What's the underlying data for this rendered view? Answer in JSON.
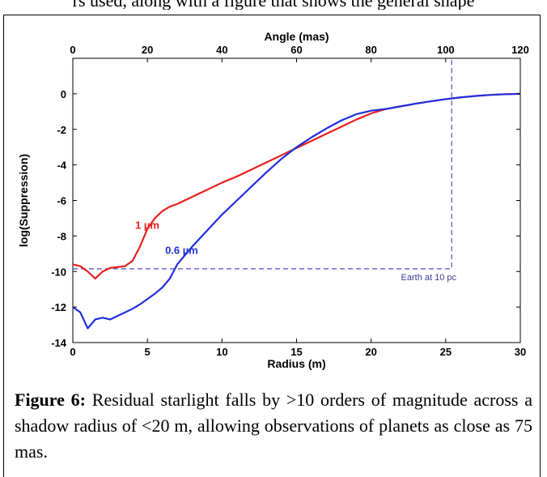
{
  "header_fragment": "rs used, along with a figure that shows the general shape",
  "caption": {
    "label": "Figure 6:",
    "text": "Residual starlight falls by >10 orders of magnitude across a shadow radius of <20 m, allowing observations of planets as close as 75 mas."
  },
  "chart_data": {
    "type": "line",
    "xlabel": "Radius (m)",
    "x2label": "Angle (mas)",
    "ylabel": "log(Suppression)",
    "xlim": [
      0,
      30
    ],
    "x2lim": [
      0,
      120
    ],
    "ylim": [
      -14,
      2
    ],
    "xticks": [
      0,
      5,
      10,
      15,
      20,
      25,
      30
    ],
    "x2ticks": [
      0,
      20,
      40,
      60,
      80,
      100,
      120
    ],
    "yticks": [
      0,
      -2,
      -4,
      -6,
      -8,
      -10,
      -12,
      -14
    ],
    "grid": false,
    "series": [
      {
        "name": "1 µm",
        "color": "#e8201e",
        "x": [
          0,
          0.5,
          1.0,
          1.5,
          2.0,
          2.5,
          3.0,
          3.5,
          4.0,
          4.5,
          5.0,
          5.5,
          6.0,
          6.5,
          7.0,
          8.0,
          9.0,
          10.0,
          11.0,
          12.0,
          13.0,
          14.0,
          15.0,
          16.0,
          17.0,
          18.0,
          19.0,
          20.0,
          21.0,
          22.0,
          23.0,
          24.0,
          25.0,
          26.0,
          27.0,
          28.0,
          29.0,
          30.0
        ],
        "y": [
          -9.6,
          -9.7,
          -10.0,
          -10.4,
          -10.0,
          -9.8,
          -9.75,
          -9.7,
          -9.4,
          -8.6,
          -7.6,
          -7.0,
          -6.6,
          -6.35,
          -6.2,
          -5.8,
          -5.4,
          -5.0,
          -4.65,
          -4.25,
          -3.85,
          -3.45,
          -3.05,
          -2.65,
          -2.25,
          -1.85,
          -1.45,
          -1.1,
          -0.85,
          -0.7,
          -0.55,
          -0.42,
          -0.3,
          -0.2,
          -0.12,
          -0.06,
          -0.02,
          0.0
        ]
      },
      {
        "name": "0.6 µm",
        "color": "#1f2fe0",
        "x": [
          0,
          0.5,
          1.0,
          1.5,
          2.0,
          2.5,
          3.0,
          3.5,
          4.0,
          4.5,
          5.0,
          5.5,
          6.0,
          6.5,
          7.0,
          8.0,
          9.0,
          10.0,
          11.0,
          12.0,
          13.0,
          14.0,
          15.0,
          16.0,
          17.0,
          18.0,
          19.0,
          20.0,
          21.0,
          22.0,
          23.0,
          24.0,
          25.0,
          26.0,
          27.0,
          28.0,
          29.0,
          30.0
        ],
        "y": [
          -12.0,
          -12.3,
          -13.2,
          -12.7,
          -12.6,
          -12.7,
          -12.5,
          -12.3,
          -12.1,
          -11.85,
          -11.55,
          -11.25,
          -10.9,
          -10.4,
          -9.6,
          -8.6,
          -7.7,
          -6.8,
          -6.0,
          -5.2,
          -4.4,
          -3.65,
          -3.0,
          -2.45,
          -1.95,
          -1.5,
          -1.15,
          -0.95,
          -0.85,
          -0.7,
          -0.55,
          -0.42,
          -0.3,
          -0.2,
          -0.12,
          -0.06,
          -0.02,
          0.0
        ]
      }
    ],
    "annotations": [
      {
        "text": "1 µm",
        "x": 5.8,
        "y": -7.6,
        "color": "#e8201e"
      },
      {
        "text": "0.6 µm",
        "x": 8.4,
        "y": -9.0,
        "color": "#1f2fe0"
      },
      {
        "text": "Earth at 10 pc",
        "x": 22.0,
        "y": -10.5,
        "color": "#3a3a9a"
      }
    ],
    "reference_lines": [
      {
        "style": "dashed",
        "color": "#5a5ac8",
        "points": [
          [
            0,
            -9.85
          ],
          [
            25.4,
            -9.85
          ],
          [
            25.4,
            2.0
          ]
        ]
      }
    ]
  }
}
